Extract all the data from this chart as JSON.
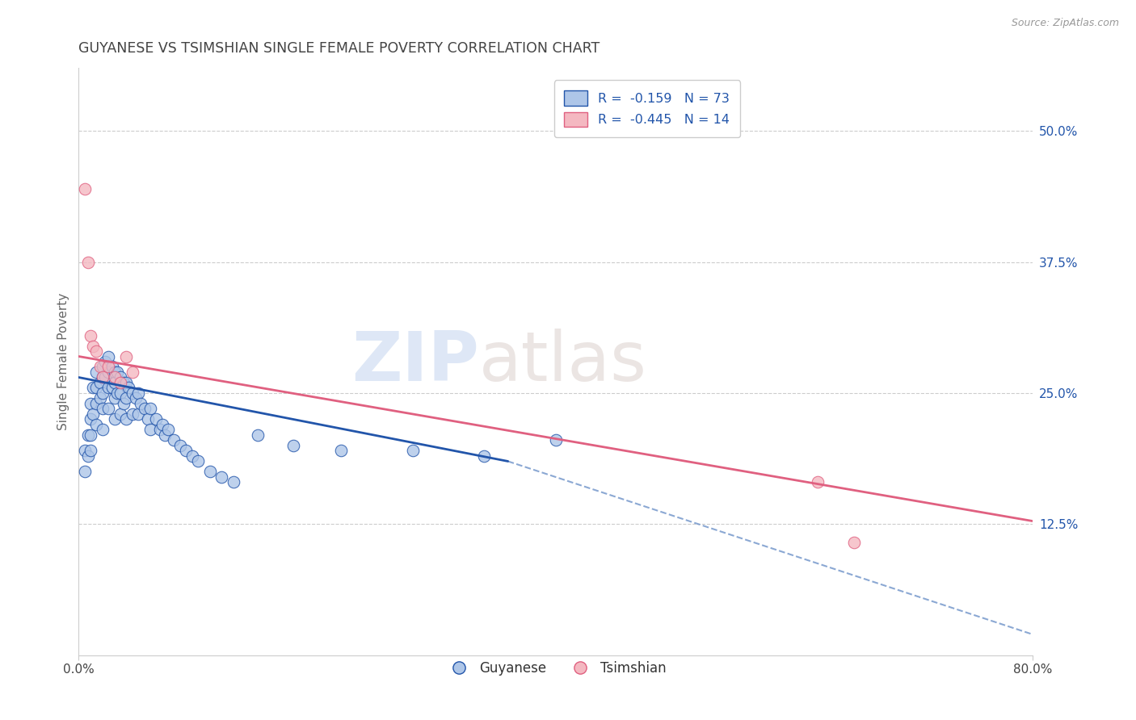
{
  "title": "GUYANESE VS TSIMSHIAN SINGLE FEMALE POVERTY CORRELATION CHART",
  "source": "Source: ZipAtlas.com",
  "xlabel_labels": [
    "0.0%",
    "80.0%"
  ],
  "ylabel_label": "Single Female Poverty",
  "right_ytick_labels": [
    "50.0%",
    "37.5%",
    "25.0%",
    "12.5%"
  ],
  "right_ytick_values": [
    0.5,
    0.375,
    0.25,
    0.125
  ],
  "xlim": [
    0.0,
    0.8
  ],
  "ylim": [
    0.0,
    0.56
  ],
  "legend_r1": "R =  -0.159   N = 73",
  "legend_r2": "R =  -0.445   N = 14",
  "guyanese_color": "#aec6e8",
  "tsimshian_color": "#f4b8c1",
  "guyanese_line_color": "#2255aa",
  "tsimshian_line_color": "#e06080",
  "dashed_line_color": "#7799cc",
  "background_color": "#ffffff",
  "guyanese_label": "Guyanese",
  "tsimshian_label": "Tsimshian",
  "guyanese_x": [
    0.005,
    0.005,
    0.008,
    0.008,
    0.01,
    0.01,
    0.01,
    0.01,
    0.012,
    0.012,
    0.015,
    0.015,
    0.015,
    0.015,
    0.018,
    0.018,
    0.02,
    0.02,
    0.02,
    0.02,
    0.02,
    0.022,
    0.022,
    0.025,
    0.025,
    0.025,
    0.025,
    0.028,
    0.028,
    0.03,
    0.03,
    0.03,
    0.03,
    0.032,
    0.032,
    0.035,
    0.035,
    0.035,
    0.038,
    0.038,
    0.04,
    0.04,
    0.04,
    0.042,
    0.045,
    0.045,
    0.048,
    0.05,
    0.05,
    0.052,
    0.055,
    0.058,
    0.06,
    0.06,
    0.065,
    0.068,
    0.07,
    0.072,
    0.075,
    0.08,
    0.085,
    0.09,
    0.095,
    0.1,
    0.11,
    0.12,
    0.13,
    0.15,
    0.18,
    0.22,
    0.28,
    0.34,
    0.4
  ],
  "guyanese_y": [
    0.195,
    0.175,
    0.21,
    0.19,
    0.24,
    0.225,
    0.21,
    0.195,
    0.255,
    0.23,
    0.27,
    0.255,
    0.24,
    0.22,
    0.26,
    0.245,
    0.275,
    0.265,
    0.25,
    0.235,
    0.215,
    0.28,
    0.265,
    0.285,
    0.27,
    0.255,
    0.235,
    0.275,
    0.255,
    0.27,
    0.26,
    0.245,
    0.225,
    0.27,
    0.25,
    0.265,
    0.25,
    0.23,
    0.26,
    0.24,
    0.26,
    0.245,
    0.225,
    0.255,
    0.25,
    0.23,
    0.245,
    0.25,
    0.23,
    0.24,
    0.235,
    0.225,
    0.235,
    0.215,
    0.225,
    0.215,
    0.22,
    0.21,
    0.215,
    0.205,
    0.2,
    0.195,
    0.19,
    0.185,
    0.175,
    0.17,
    0.165,
    0.21,
    0.2,
    0.195,
    0.195,
    0.19,
    0.205
  ],
  "tsimshian_x": [
    0.005,
    0.008,
    0.01,
    0.012,
    0.015,
    0.018,
    0.02,
    0.025,
    0.03,
    0.035,
    0.04,
    0.045,
    0.62,
    0.65
  ],
  "tsimshian_y": [
    0.445,
    0.375,
    0.305,
    0.295,
    0.29,
    0.275,
    0.265,
    0.275,
    0.265,
    0.26,
    0.285,
    0.27,
    0.165,
    0.108
  ],
  "blue_line_x0": 0.0,
  "blue_line_x1": 0.36,
  "blue_line_y0": 0.265,
  "blue_line_y1": 0.185,
  "pink_line_x0": 0.0,
  "pink_line_x1": 0.8,
  "pink_line_y0": 0.285,
  "pink_line_y1": 0.128,
  "dash_line_x0": 0.36,
  "dash_line_x1": 0.8,
  "dash_line_y0": 0.185,
  "dash_line_y1": 0.02
}
